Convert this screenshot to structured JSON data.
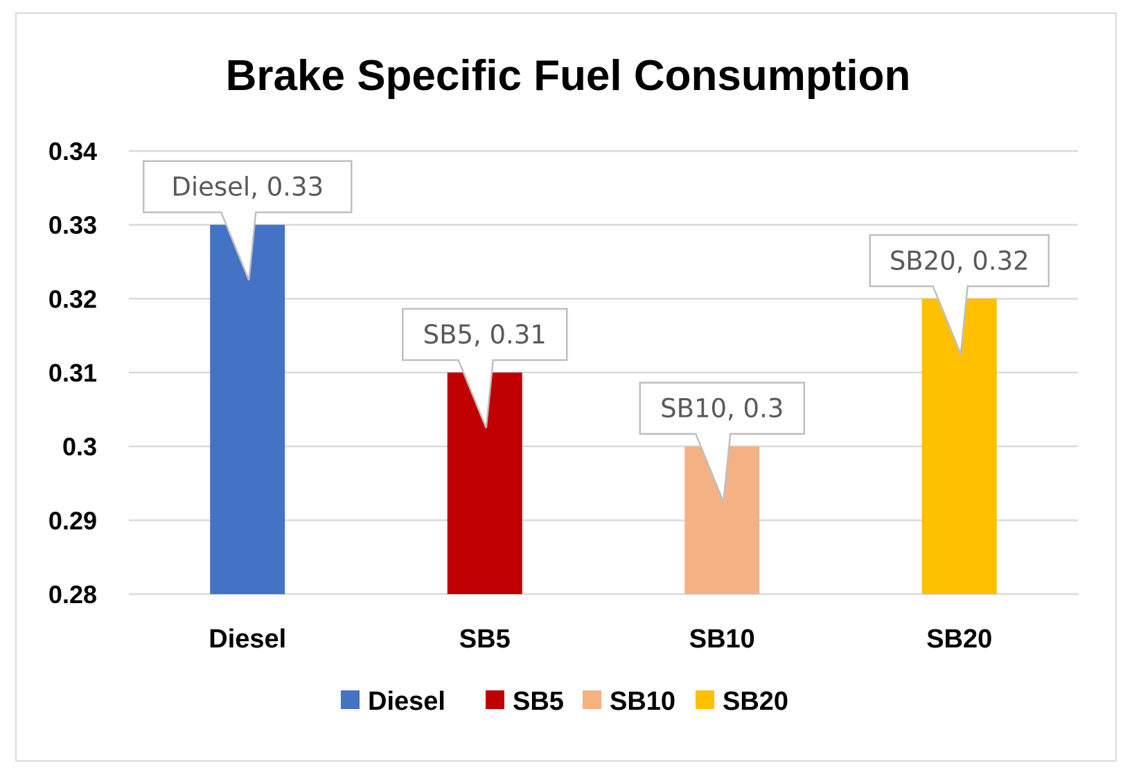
{
  "chart_data": {
    "type": "bar",
    "title": "Brake Specific Fuel Consumption",
    "categories": [
      "Diesel",
      "SB5",
      "SB10",
      "SB20"
    ],
    "values": [
      0.33,
      0.31,
      0.3,
      0.32
    ],
    "colors": [
      "#4472c4",
      "#c00000",
      "#f4b183",
      "#ffc000"
    ],
    "data_labels": [
      "Diesel, 0.33",
      "SB5, 0.31",
      "SB10, 0.3",
      "SB20, 0.32"
    ],
    "ylim": [
      0.28,
      0.34
    ],
    "yticks": [
      0.28,
      0.29,
      0.3,
      0.31,
      0.32,
      0.33,
      0.34
    ],
    "ytick_labels": [
      "0.28",
      "0.29",
      "0.3",
      "0.31",
      "0.32",
      "0.33",
      "0.34"
    ],
    "xlabel": "",
    "ylabel": "",
    "grid": true,
    "legend_position": "bottom",
    "legend": [
      "Diesel",
      "SB5",
      "SB10",
      "SB20"
    ]
  }
}
